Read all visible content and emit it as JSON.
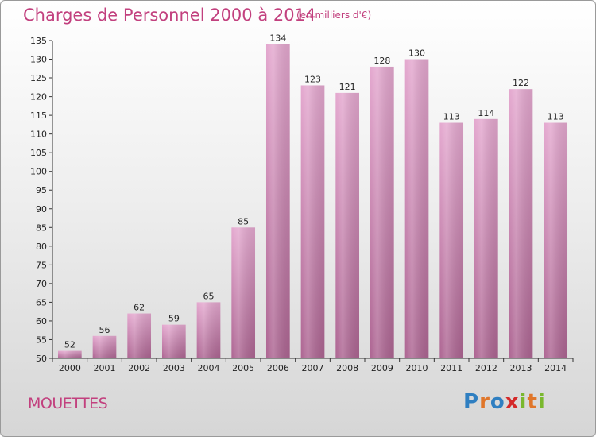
{
  "header": {
    "title": "Charges de Personnel 2000 à 2014",
    "subtitle": "(en milliers d'€)"
  },
  "footer": {
    "commune": "MOUETTES",
    "logo_text": "Proxiti"
  },
  "colors": {
    "accent": "#c2407e",
    "bar_top": "#e4a8cf",
    "bar_bottom": "#ad6592"
  },
  "chart_data": {
    "type": "bar",
    "categories": [
      "2000",
      "2001",
      "2002",
      "2003",
      "2004",
      "2005",
      "2006",
      "2007",
      "2008",
      "2009",
      "2010",
      "2011",
      "2012",
      "2013",
      "2014"
    ],
    "values": [
      52,
      56,
      62,
      59,
      65,
      85,
      134,
      123,
      121,
      128,
      130,
      113,
      114,
      122,
      113
    ],
    "title": "Charges de Personnel 2000 à 2014",
    "subtitle": "(en milliers d'€)",
    "ylim": [
      50,
      135
    ],
    "ytick_step": 5,
    "grid": false,
    "data_labels": true
  }
}
